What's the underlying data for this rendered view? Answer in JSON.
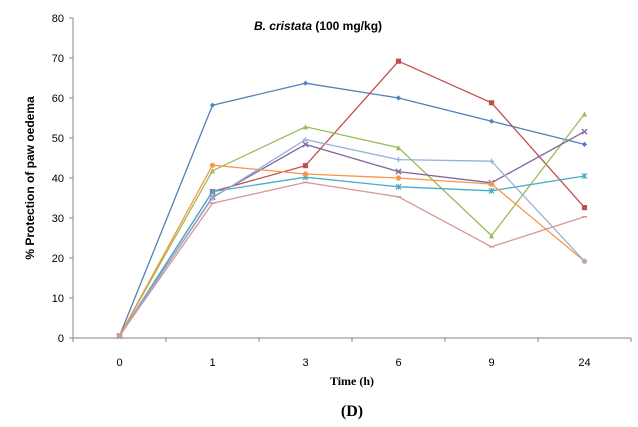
{
  "chart_data": {
    "type": "line",
    "title_italic": "B. cristata",
    "title_rest": " (100 mg/kg)",
    "xlabel": "Time (h)",
    "ylabel": "% Protection of paw oedema",
    "panel_label": "(D)",
    "categories": [
      "0",
      "1",
      "3",
      "6",
      "9",
      "24"
    ],
    "ylim": [
      0,
      80
    ],
    "yticks": [
      0,
      10,
      20,
      30,
      40,
      50,
      60,
      70,
      80
    ],
    "grid": false,
    "legend": "none",
    "series": [
      {
        "name": "series-1",
        "color": "#4F81BD",
        "marker": "diamond",
        "values": [
          0.5,
          58.2,
          63.7,
          60.0,
          54.2,
          48.4
        ]
      },
      {
        "name": "series-2",
        "color": "#C0504D",
        "marker": "square",
        "values": [
          0.5,
          36.6,
          43.1,
          69.2,
          58.8,
          32.6
        ]
      },
      {
        "name": "series-3",
        "color": "#9BBB59",
        "marker": "triangle",
        "values": [
          0.5,
          41.8,
          52.8,
          47.6,
          25.6,
          56.0
        ]
      },
      {
        "name": "series-4",
        "color": "#8064A2",
        "marker": "x",
        "values": [
          0.5,
          35.2,
          48.4,
          41.6,
          38.8,
          51.6
        ]
      },
      {
        "name": "series-5",
        "color": "#4BACC6",
        "marker": "star",
        "values": [
          0.5,
          36.6,
          40.2,
          37.8,
          36.8,
          40.5
        ]
      },
      {
        "name": "series-6",
        "color": "#F79646",
        "marker": "circle",
        "values": [
          0.5,
          43.2,
          41.0,
          40.0,
          38.5,
          19.2
        ]
      },
      {
        "name": "series-7",
        "color": "#95B3D7",
        "marker": "plus",
        "values": [
          0.5,
          35.0,
          49.6,
          44.6,
          44.2,
          19.2
        ]
      },
      {
        "name": "series-8",
        "color": "#D99694",
        "marker": "dash",
        "values": [
          0.5,
          33.7,
          38.9,
          35.3,
          22.8,
          30.3
        ]
      }
    ]
  }
}
